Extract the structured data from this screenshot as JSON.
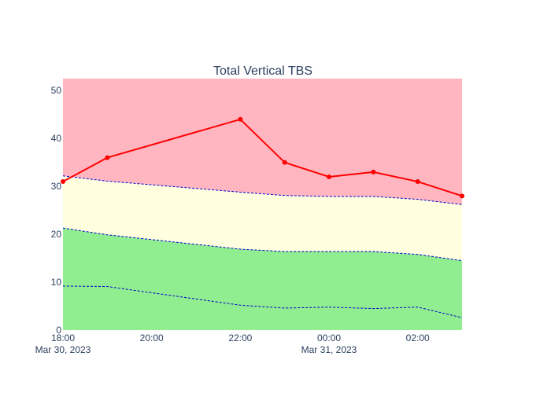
{
  "chart_data": {
    "type": "line",
    "title": "Total Vertical TBS",
    "xlabel": "",
    "ylabel": "",
    "x": [
      "2023-03-30T18:00",
      "2023-03-30T19:00",
      "2023-03-30T22:00",
      "2023-03-30T23:00",
      "2023-03-31T00:00",
      "2023-03-31T01:00",
      "2023-03-31T02:00",
      "2023-03-31T03:00"
    ],
    "x_range": [
      "2023-03-30T18:00",
      "2023-03-31T03:00"
    ],
    "ylim": [
      0,
      52.5
    ],
    "grid": false,
    "legend": "none",
    "x_ticks": [
      {
        "x": "2023-03-30T18:00",
        "label": "18:00",
        "date_label": "Mar 30, 2023"
      },
      {
        "x": "2023-03-30T20:00",
        "label": "20:00",
        "date_label": ""
      },
      {
        "x": "2023-03-30T22:00",
        "label": "22:00",
        "date_label": ""
      },
      {
        "x": "2023-03-31T00:00",
        "label": "00:00",
        "date_label": "Mar 31, 2023"
      },
      {
        "x": "2023-03-31T02:00",
        "label": "02:00",
        "date_label": ""
      }
    ],
    "y_ticks": [
      0,
      10,
      20,
      30,
      40,
      50
    ],
    "series": [
      {
        "values": [
          9.2,
          9.1,
          5.2,
          4.6,
          4.8,
          4.5,
          4.8,
          2.6
        ],
        "line_color": "#0000cd",
        "fill_color": "#90ee90",
        "dashed": true
      },
      {
        "values": [
          21.3,
          19.9,
          16.9,
          16.4,
          16.4,
          16.4,
          15.8,
          14.5
        ],
        "line_color": "#0000cd",
        "fill_color": "#90ee90",
        "dashed": true
      },
      {
        "values": [
          32.2,
          31.1,
          28.8,
          28.1,
          27.9,
          27.9,
          27.3,
          26.2
        ],
        "line_color": "#0000cd",
        "fill_color": "#ffffe0",
        "dashed": true
      },
      {
        "values": [
          31,
          36,
          44,
          35,
          32,
          33,
          31,
          28
        ],
        "line_color": "#ff0000",
        "dashed": false,
        "markers": true
      }
    ],
    "background_top_color": "#ffb6c1"
  }
}
